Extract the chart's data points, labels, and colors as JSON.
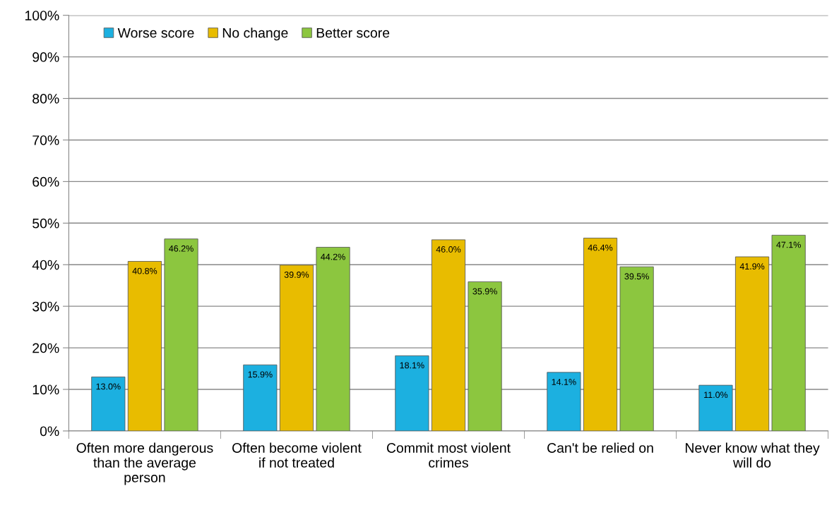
{
  "chart_data": {
    "type": "bar",
    "categories": [
      "Often more dangerous than the average person",
      "Often become violent if not treated",
      "Commit most violent crimes",
      "Can't be relied on",
      "Never know what they will do"
    ],
    "series": [
      {
        "name": "Worse score",
        "color": "#1cb0e0",
        "values": [
          13.0,
          15.9,
          18.1,
          14.1,
          11.0
        ],
        "value_labels": [
          "13.0%",
          "15.9%",
          "18.1%",
          "14.1%",
          "11.0%"
        ]
      },
      {
        "name": "No change",
        "color": "#e8bc00",
        "values": [
          40.8,
          39.9,
          46.0,
          46.4,
          41.9
        ],
        "value_labels": [
          "40.8%",
          "39.9%",
          "46.0%",
          "46.4%",
          "41.9%"
        ]
      },
      {
        "name": "Better score",
        "color": "#8cc63f",
        "values": [
          46.2,
          44.2,
          35.9,
          39.5,
          47.1
        ],
        "value_labels": [
          "46.2%",
          "44.2%",
          "35.9%",
          "39.5%",
          "47.1%"
        ]
      }
    ],
    "ylim": [
      0,
      100
    ],
    "yticks": [
      {
        "value": 0,
        "label": "0%"
      },
      {
        "value": 10,
        "label": "10%"
      },
      {
        "value": 20,
        "label": "20%"
      },
      {
        "value": 30,
        "label": "30%"
      },
      {
        "value": 40,
        "label": "40%"
      },
      {
        "value": 50,
        "label": "50%"
      },
      {
        "value": 60,
        "label": "60%"
      },
      {
        "value": 70,
        "label": "70%"
      },
      {
        "value": 80,
        "label": "80%"
      },
      {
        "value": 90,
        "label": "90%"
      },
      {
        "value": 100,
        "label": "100%"
      }
    ],
    "grid": "y",
    "legend": "top left"
  }
}
